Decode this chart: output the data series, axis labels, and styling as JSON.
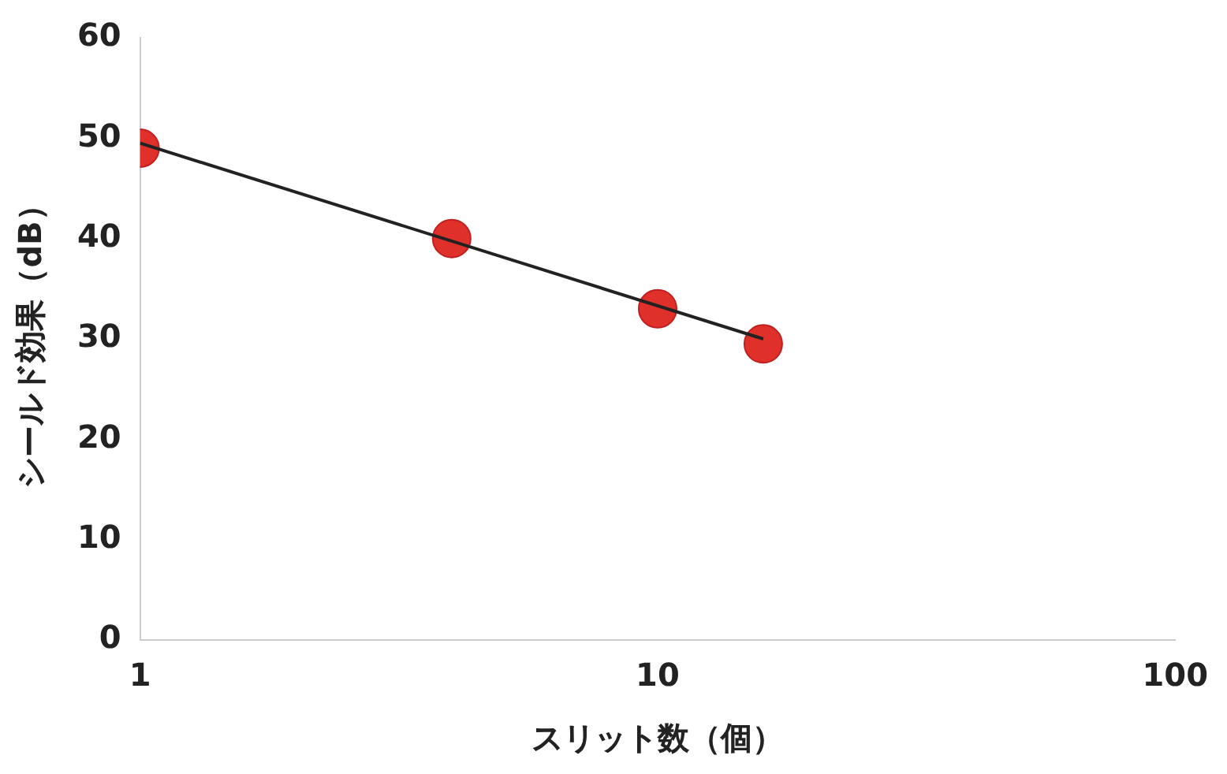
{
  "chart_data": {
    "type": "scatter",
    "xlabel": "スリット数（個）",
    "ylabel": "シールド効果（dB）",
    "log": "x",
    "xlim": [
      1,
      100
    ],
    "xticks": [
      1,
      10,
      100
    ],
    "ylim": [
      0,
      60
    ],
    "yticks": [
      0,
      10,
      20,
      30,
      40,
      50,
      60
    ],
    "grid": false,
    "legend": false,
    "marker": "circle",
    "series": [
      {
        "type": "line",
        "marker": "none",
        "color": "#222222",
        "x": [
          1,
          16
        ],
        "values": [
          49.5,
          30
        ]
      },
      {
        "color": "#e0302a",
        "x": [
          1,
          4,
          10,
          16
        ],
        "values": [
          49,
          40,
          33,
          29.5
        ]
      }
    ]
  }
}
